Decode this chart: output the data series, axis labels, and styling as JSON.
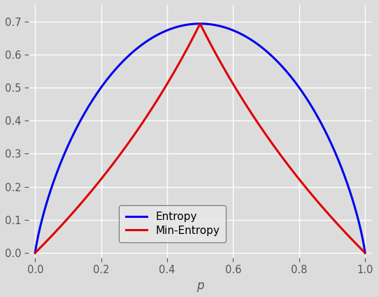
{
  "title": "",
  "xlabel": "p",
  "ylabel": "",
  "xlim": [
    -0.02,
    1.02
  ],
  "ylim": [
    -0.015,
    0.75
  ],
  "yticks": [
    0.0,
    0.1,
    0.2,
    0.3,
    0.4,
    0.5,
    0.6,
    0.7
  ],
  "xticks": [
    0.0,
    0.2,
    0.4,
    0.6,
    0.8,
    1.0
  ],
  "entropy_color": "#0000ee",
  "min_entropy_color": "#dd0000",
  "entropy_label": "Entropy",
  "min_entropy_label": "Min-Entropy",
  "line_width": 2.2,
  "background_color": "#dcdcdc",
  "plot_bg_color": "#dcdcdc",
  "legend_facecolor": "#e8e8e8",
  "legend_edgecolor": "#555555",
  "grid_color": "#ffffff",
  "grid_linewidth": 1.0,
  "tick_color": "#555555",
  "label_color": "#555555",
  "legend_fontsize": 11,
  "tick_fontsize": 10.5,
  "xlabel_fontsize": 12
}
